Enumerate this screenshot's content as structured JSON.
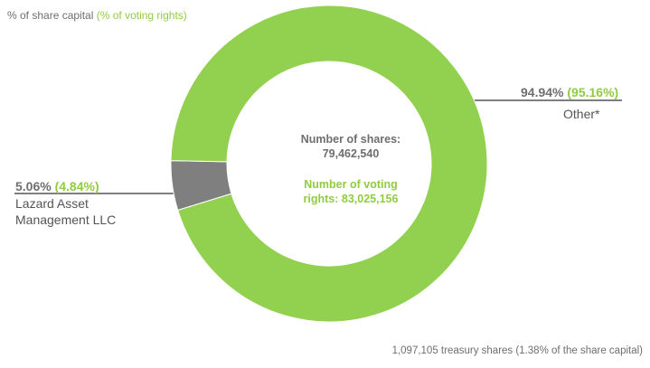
{
  "chart_data": {
    "type": "pie",
    "variant": "donut",
    "legend_note": {
      "prefix": "% of share capital",
      "suffix": "(% of voting rights)"
    },
    "slices": [
      {
        "label": "Other*",
        "share_pct": "94.94%",
        "voting_pct": "(95.16%)",
        "share_value": 94.94,
        "voting_value": 95.16,
        "color": "#92d050"
      },
      {
        "label": "Lazard Asset Management LLC",
        "label_lines": [
          "Lazard Asset",
          "Management LLC"
        ],
        "share_pct": "5.06%",
        "voting_pct": "(4.84%)",
        "share_value": 5.06,
        "voting_value": 4.84,
        "color": "#7f7f7f"
      }
    ],
    "center": {
      "shares_label": "Number of shares:",
      "shares_value": "79,462,540",
      "voting_label": "Number  of voting",
      "voting_value": "rights: 83,025,156"
    },
    "footnote": "1,097,105 treasury shares  (1.38% of the share capital)"
  }
}
